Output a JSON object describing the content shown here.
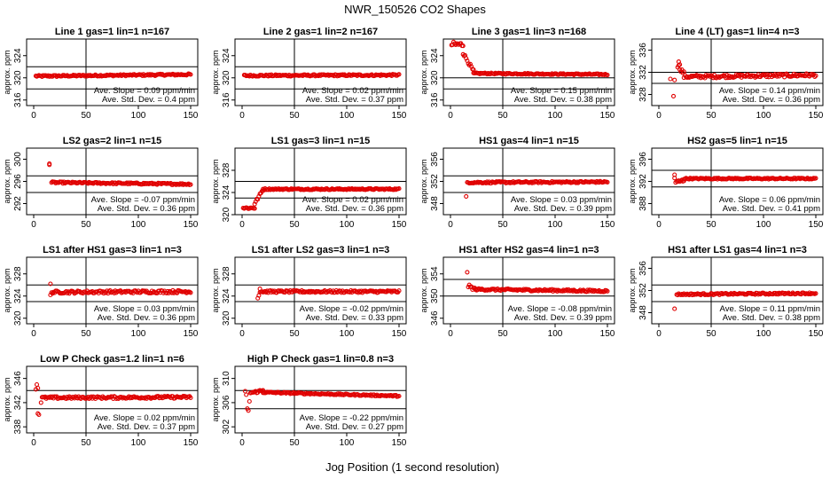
{
  "figure": {
    "title": "NWR_150526  CO2 Shapes",
    "xlabel": "Jog Position (1 second resolution)",
    "slope_label": "Ave. Slope =",
    "slope_unit": "ppm/min",
    "sd_label": "Ave. Std. Dev. =",
    "sd_unit": "ppm",
    "point_color": "#e00000"
  },
  "chart_data": [
    {
      "type": "scatter",
      "title": "Line 1 gas=1 lin=1 n=167",
      "ylabel": "approx. ppm",
      "xlim": [
        0,
        150
      ],
      "xticks": [
        0,
        50,
        100,
        150
      ],
      "ylim": [
        315,
        327
      ],
      "yticks": [
        316,
        320,
        324
      ],
      "ref_lines": [
        318,
        322
      ],
      "vline": 50,
      "slope": "0.09",
      "sd": "0.4",
      "segments": [
        {
          "x0": 2,
          "x1": 150,
          "y0": 320.3,
          "y1": 320.6,
          "noise": 0.15
        }
      ]
    },
    {
      "type": "scatter",
      "title": "Line 2 gas=1 lin=2 n=167",
      "ylabel": "approx. ppm",
      "xlim": [
        0,
        150
      ],
      "xticks": [
        0,
        50,
        100,
        150
      ],
      "ylim": [
        315,
        327
      ],
      "yticks": [
        316,
        320,
        324
      ],
      "ref_lines": [
        318,
        322
      ],
      "vline": 50,
      "slope": "0.02",
      "sd": "0.37",
      "segments": [
        {
          "x0": 2,
          "x1": 150,
          "y0": 320.4,
          "y1": 320.5,
          "noise": 0.15
        }
      ]
    },
    {
      "type": "scatter",
      "title": "Line 3 gas=1 lin=3 n=168",
      "ylabel": "approx. ppm",
      "xlim": [
        0,
        150
      ],
      "xticks": [
        0,
        50,
        100,
        150
      ],
      "ylim": [
        315,
        327
      ],
      "yticks": [
        316,
        320,
        324
      ],
      "ref_lines": [
        318,
        320
      ],
      "vline": 50,
      "slope": "0.15",
      "sd": "0.38",
      "segments": [
        {
          "x0": 1,
          "x1": 12,
          "y0": 326.0,
          "y1": 326.0,
          "noise": 0.5
        },
        {
          "x0": 12,
          "x1": 22,
          "y0": 324.5,
          "y1": 321.2,
          "noise": 0.3
        },
        {
          "x0": 22,
          "x1": 150,
          "y0": 320.8,
          "y1": 320.6,
          "noise": 0.12
        }
      ]
    },
    {
      "type": "scatter",
      "title": "Line 4 (LT) gas=1 lin=4 n=3",
      "ylabel": "approx. ppm",
      "xlim": [
        0,
        150
      ],
      "xticks": [
        0,
        50,
        100,
        150
      ],
      "ylim": [
        326,
        338
      ],
      "yticks": [
        328,
        332,
        336
      ],
      "ref_lines": [
        330,
        332
      ],
      "vline": 50,
      "slope": "0.14",
      "sd": "0.36",
      "points": [
        [
          11,
          330.8
        ],
        [
          14,
          327.7
        ],
        [
          15,
          330.6
        ],
        [
          20,
          333.4
        ],
        [
          19,
          333.9
        ]
      ],
      "segments": [
        {
          "x0": 18,
          "x1": 24,
          "y0": 333.2,
          "y1": 331.8,
          "noise": 0.4
        },
        {
          "x0": 24,
          "x1": 150,
          "y0": 331.2,
          "y1": 331.5,
          "noise": 0.3
        }
      ]
    },
    {
      "type": "scatter",
      "title": "LS2 gas=2 lin=1 n=15",
      "ylabel": "approx. ppm",
      "xlim": [
        0,
        150
      ],
      "xticks": [
        0,
        50,
        100,
        150
      ],
      "ylim": [
        290,
        302
      ],
      "yticks": [
        292,
        296,
        300
      ],
      "ref_lines": [
        294,
        297
      ],
      "vline": 50,
      "slope": "-0.07",
      "sd": "0.36",
      "points": [
        [
          15,
          299.2
        ],
        [
          15,
          299.0
        ]
      ],
      "segments": [
        {
          "x0": 17,
          "x1": 150,
          "y0": 295.8,
          "y1": 295.5,
          "noise": 0.15
        }
      ]
    },
    {
      "type": "scatter",
      "title": "LS1 gas=3 lin=1 n=15",
      "ylabel": "approx. ppm",
      "xlim": [
        0,
        150
      ],
      "xticks": [
        0,
        50,
        100,
        150
      ],
      "ylim": [
        320,
        332
      ],
      "yticks": [
        320,
        324,
        328
      ],
      "ref_lines": [
        323,
        326
      ],
      "vline": 50,
      "slope": "0.02",
      "sd": "0.36",
      "segments": [
        {
          "x0": 1,
          "x1": 12,
          "y0": 321.2,
          "y1": 321.2,
          "noise": 0.2
        },
        {
          "x0": 12,
          "x1": 20,
          "y0": 322.0,
          "y1": 324.5,
          "noise": 0.25
        },
        {
          "x0": 20,
          "x1": 150,
          "y0": 324.6,
          "y1": 324.6,
          "noise": 0.12
        }
      ]
    },
    {
      "type": "scatter",
      "title": "HS1 gas=4 lin=1 n=15",
      "ylabel": "approx. ppm",
      "xlim": [
        0,
        150
      ],
      "xticks": [
        0,
        50,
        100,
        150
      ],
      "ylim": [
        346,
        358
      ],
      "yticks": [
        348,
        352,
        356
      ],
      "ref_lines": [
        350,
        353
      ],
      "vline": 50,
      "slope": "0.03",
      "sd": "0.39",
      "points": [
        [
          15,
          349.3
        ]
      ],
      "segments": [
        {
          "x0": 16,
          "x1": 150,
          "y0": 351.8,
          "y1": 351.9,
          "noise": 0.15
        }
      ]
    },
    {
      "type": "scatter",
      "title": "HS2 gas=5 lin=1 n=15",
      "ylabel": "approx. ppm",
      "xlim": [
        0,
        150
      ],
      "xticks": [
        0,
        50,
        100,
        150
      ],
      "ylim": [
        386,
        398
      ],
      "yticks": [
        388,
        392,
        396
      ],
      "ref_lines": [
        391,
        394
      ],
      "vline": 50,
      "slope": "0.06",
      "sd": "0.41",
      "points": [
        [
          15,
          393.2
        ],
        [
          15,
          392.6
        ]
      ],
      "segments": [
        {
          "x0": 16,
          "x1": 24,
          "y0": 391.8,
          "y1": 392.2,
          "noise": 0.3
        },
        {
          "x0": 24,
          "x1": 150,
          "y0": 392.5,
          "y1": 392.5,
          "noise": 0.12
        }
      ]
    },
    {
      "type": "scatter",
      "title": "LS1 after HS1 gas=3 lin=1 n=3",
      "ylabel": "approx. ppm",
      "xlim": [
        0,
        150
      ],
      "xticks": [
        0,
        50,
        100,
        150
      ],
      "ylim": [
        319,
        331
      ],
      "yticks": [
        320,
        324,
        328
      ],
      "ref_lines": [
        323,
        326
      ],
      "vline": 50,
      "slope": "0.03",
      "sd": "0.36",
      "points": [
        [
          16,
          326.2
        ],
        [
          16,
          324.2
        ]
      ],
      "segments": [
        {
          "x0": 17,
          "x1": 150,
          "y0": 324.7,
          "y1": 324.8,
          "noise": 0.25
        }
      ]
    },
    {
      "type": "scatter",
      "title": "LS1 after LS2 gas=3 lin=1 n=3",
      "ylabel": "approx. ppm",
      "xlim": [
        0,
        150
      ],
      "xticks": [
        0,
        50,
        100,
        150
      ],
      "ylim": [
        319,
        331
      ],
      "yticks": [
        320,
        324,
        328
      ],
      "ref_lines": [
        323,
        326
      ],
      "vline": 50,
      "slope": "-0.02",
      "sd": "0.33",
      "points": [
        [
          15,
          323.6
        ],
        [
          16,
          324.1
        ],
        [
          17,
          325.3
        ]
      ],
      "segments": [
        {
          "x0": 17,
          "x1": 150,
          "y0": 324.8,
          "y1": 324.8,
          "noise": 0.2
        }
      ]
    },
    {
      "type": "scatter",
      "title": "HS1 after HS2 gas=4 lin=1 n=3",
      "ylabel": "approx. ppm",
      "xlim": [
        0,
        150
      ],
      "xticks": [
        0,
        50,
        100,
        150
      ],
      "ylim": [
        345,
        357
      ],
      "yticks": [
        346,
        350,
        354
      ],
      "ref_lines": [
        350,
        353
      ],
      "vline": 50,
      "slope": "-0.08",
      "sd": "0.39",
      "points": [
        [
          16,
          354.3
        ]
      ],
      "segments": [
        {
          "x0": 17,
          "x1": 24,
          "y0": 351.8,
          "y1": 351.2,
          "noise": 0.3
        },
        {
          "x0": 24,
          "x1": 150,
          "y0": 351.2,
          "y1": 350.9,
          "noise": 0.18
        }
      ]
    },
    {
      "type": "scatter",
      "title": "HS1 after LS1 gas=4 lin=1 n=3",
      "ylabel": "approx. ppm",
      "xlim": [
        0,
        150
      ],
      "xticks": [
        0,
        50,
        100,
        150
      ],
      "ylim": [
        346,
        358
      ],
      "yticks": [
        348,
        352,
        356
      ],
      "ref_lines": [
        350,
        353
      ],
      "vline": 50,
      "slope": "0.11",
      "sd": "0.38",
      "points": [
        [
          15,
          348.7
        ]
      ],
      "segments": [
        {
          "x0": 17,
          "x1": 150,
          "y0": 351.3,
          "y1": 351.5,
          "noise": 0.15
        }
      ]
    },
    {
      "type": "scatter",
      "title": "Low P Check gas=1.2 lin=1 n=6",
      "ylabel": "approx. ppm",
      "xlim": [
        0,
        150
      ],
      "xticks": [
        0,
        50,
        100,
        150
      ],
      "ylim": [
        337,
        348
      ],
      "yticks": [
        338,
        342,
        346
      ],
      "ref_lines": [
        341,
        344
      ],
      "vline": 50,
      "slope": "0.02",
      "sd": "0.37",
      "points": [
        [
          2,
          344.2
        ],
        [
          3,
          345.0
        ],
        [
          4,
          344.4
        ],
        [
          4,
          340.2
        ],
        [
          5,
          340.0
        ],
        [
          7,
          342.0
        ]
      ],
      "segments": [
        {
          "x0": 8,
          "x1": 150,
          "y0": 342.8,
          "y1": 342.9,
          "noise": 0.2
        }
      ]
    },
    {
      "type": "scatter",
      "title": "High P Check gas=1 lin=0.8 n=3",
      "ylabel": "approx. ppm",
      "xlim": [
        0,
        150
      ],
      "xticks": [
        0,
        50,
        100,
        150
      ],
      "ylim": [
        301,
        312
      ],
      "yticks": [
        302,
        306,
        310
      ],
      "ref_lines": [
        305,
        308
      ],
      "vline": 50,
      "slope": "-0.22",
      "sd": "0.27",
      "points": [
        [
          3,
          307.9
        ],
        [
          4,
          307.3
        ],
        [
          5,
          305.0
        ],
        [
          6,
          304.7
        ],
        [
          7,
          306.2
        ]
      ],
      "segments": [
        {
          "x0": 8,
          "x1": 20,
          "y0": 307.6,
          "y1": 308.0,
          "noise": 0.2
        },
        {
          "x0": 20,
          "x1": 150,
          "y0": 307.7,
          "y1": 307.1,
          "noise": 0.12
        }
      ]
    }
  ]
}
